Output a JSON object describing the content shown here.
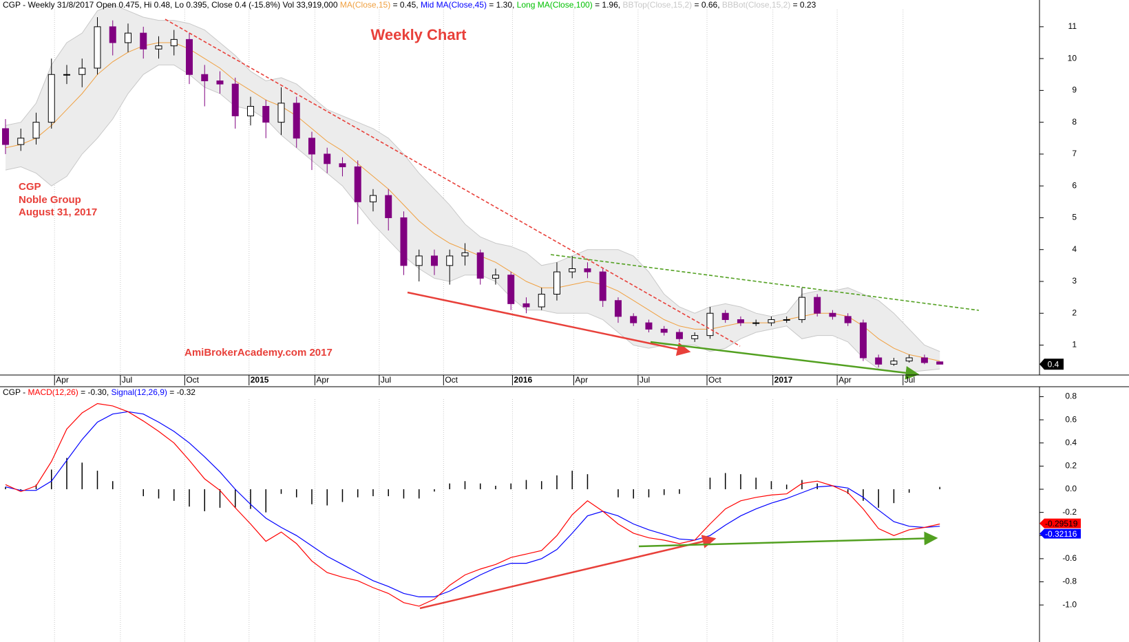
{
  "chart_data": [
    {
      "type": "candlestick",
      "header": {
        "prefix": "CGP - Weekly 31/8/2017 Open 0.475, Hi 0.48, Lo 0.395, Close 0.4 (-15.8%) Vol 33,919,000 ",
        "items": [
          {
            "name": "MA(Close,15)",
            "color": "#f0a040",
            "readout": " = 0.45, "
          },
          {
            "name": "Mid MA(Close,45)",
            "color": "#0000ff",
            "readout": " = 1.30, "
          },
          {
            "name": "Long MA(Close,100)",
            "color": "#00c000",
            "readout": " = 1.96, "
          },
          {
            "name": "BBTop(Close,15,2)",
            "color": "#c8c8c8",
            "readout": " = 0.66, "
          },
          {
            "name": "BBBot(Close,15,2)",
            "color": "#c8c8c8",
            "readout": " = 0.23"
          }
        ]
      },
      "title": "Weekly Chart",
      "note": [
        "CGP",
        "Noble Group",
        "August 31, 2017"
      ],
      "watermark": "AmiBrokerAcademy.com 2017",
      "x": [
        0,
        1,
        2,
        3,
        4,
        5,
        6,
        7,
        8,
        9,
        10,
        11,
        12,
        13,
        14,
        15,
        16,
        17,
        18,
        19,
        20,
        21,
        22,
        23,
        24,
        25,
        26,
        27,
        28,
        29,
        30,
        31,
        32,
        33,
        34,
        35,
        36,
        37,
        38,
        39,
        40,
        41,
        42,
        43,
        44,
        45,
        46,
        47,
        48,
        49,
        50,
        51,
        52,
        53,
        54,
        55,
        56,
        57,
        58,
        59,
        60,
        61
      ],
      "xlim": [
        -0.36,
        67.51
      ],
      "xticks": [
        {
          "value": 3.2,
          "label": "Apr"
        },
        {
          "value": 7.5,
          "label": "Jul"
        },
        {
          "value": 11.7,
          "label": "Oct"
        },
        {
          "value": 15.9,
          "label": "2015"
        },
        {
          "value": 20.2,
          "label": "Apr"
        },
        {
          "value": 24.4,
          "label": "Jul"
        },
        {
          "value": 28.6,
          "label": "Oct"
        },
        {
          "value": 33.1,
          "label": "2016"
        },
        {
          "value": 37.1,
          "label": "Apr"
        },
        {
          "value": 41.3,
          "label": "Jul"
        },
        {
          "value": 45.8,
          "label": "Oct"
        },
        {
          "value": 50.1,
          "label": "2017"
        },
        {
          "value": 54.3,
          "label": "Apr"
        },
        {
          "value": 58.6,
          "label": "Jul"
        }
      ],
      "ylim": [
        0.06,
        11.84
      ],
      "yticks": [
        1,
        2,
        3,
        4,
        5,
        6,
        7,
        8,
        9,
        10,
        11
      ],
      "grid": true,
      "open": [
        7.8,
        7.3,
        7.5,
        8.0,
        9.5,
        9.5,
        9.7,
        11.0,
        10.5,
        10.8,
        10.3,
        10.4,
        10.6,
        9.5,
        9.3,
        9.2,
        8.2,
        8.5,
        8.0,
        8.6,
        7.5,
        7.0,
        6.7,
        6.6,
        5.5,
        5.7,
        5.0,
        3.5,
        3.8,
        3.5,
        3.8,
        3.9,
        3.1,
        3.2,
        2.3,
        2.2,
        2.6,
        3.3,
        3.4,
        3.3,
        2.4,
        1.9,
        1.7,
        1.5,
        1.4,
        1.2,
        1.3,
        2.0,
        1.8,
        1.7,
        1.7,
        1.8,
        1.8,
        2.5,
        2.0,
        1.9,
        1.7,
        0.6,
        0.4,
        0.5,
        0.6,
        0.475
      ],
      "high": [
        8.1,
        7.8,
        8.3,
        10.0,
        9.8,
        10.0,
        11.3,
        11.2,
        11.1,
        11.0,
        10.7,
        10.9,
        10.8,
        9.8,
        9.6,
        9.4,
        8.8,
        8.7,
        9.1,
        8.8,
        7.7,
        7.2,
        6.9,
        6.8,
        5.9,
        5.9,
        5.2,
        4.0,
        4.0,
        4.0,
        4.2,
        4.0,
        3.4,
        3.3,
        2.5,
        2.8,
        3.6,
        3.8,
        3.6,
        3.4,
        2.5,
        2.0,
        1.8,
        1.6,
        1.5,
        1.4,
        2.2,
        2.1,
        1.9,
        1.8,
        1.9,
        1.9,
        2.8,
        2.6,
        2.1,
        2.0,
        1.8,
        0.7,
        0.6,
        0.7,
        0.7,
        0.48
      ],
      "low": [
        7.0,
        7.1,
        7.3,
        7.8,
        9.2,
        9.1,
        9.5,
        10.1,
        10.2,
        10.0,
        10.0,
        10.1,
        9.2,
        8.5,
        8.9,
        7.8,
        7.9,
        7.5,
        7.6,
        7.2,
        6.5,
        6.4,
        6.3,
        4.8,
        5.2,
        4.6,
        3.2,
        3.0,
        3.2,
        2.9,
        3.5,
        2.9,
        2.9,
        2.1,
        2.0,
        2.1,
        2.4,
        3.1,
        3.1,
        2.2,
        1.7,
        1.6,
        1.4,
        1.3,
        1.1,
        1.1,
        1.2,
        1.7,
        1.6,
        1.6,
        1.6,
        1.7,
        1.7,
        1.9,
        1.8,
        1.6,
        0.5,
        0.3,
        0.35,
        0.45,
        0.4,
        0.395
      ],
      "close": [
        7.3,
        7.5,
        8.0,
        9.5,
        9.5,
        9.7,
        11.0,
        10.5,
        10.8,
        10.3,
        10.4,
        10.6,
        9.5,
        9.3,
        9.2,
        8.2,
        8.5,
        8.0,
        8.6,
        7.5,
        7.0,
        6.7,
        6.6,
        5.5,
        5.7,
        5.0,
        3.5,
        3.8,
        3.5,
        3.8,
        3.9,
        3.1,
        3.2,
        2.3,
        2.2,
        2.6,
        3.3,
        3.4,
        3.3,
        2.4,
        1.9,
        1.7,
        1.5,
        1.4,
        1.2,
        1.3,
        2.0,
        1.8,
        1.7,
        1.7,
        1.8,
        1.8,
        2.5,
        2.0,
        1.9,
        1.7,
        0.6,
        0.4,
        0.5,
        0.6,
        0.45,
        0.4
      ],
      "up_color": "#ffffff",
      "down_color": "#800080",
      "band_color": "#ececec",
      "lines": {
        "ma15": {
          "color": "#f0a040",
          "values": [
            7.2,
            7.3,
            7.5,
            7.9,
            8.4,
            8.9,
            9.5,
            9.9,
            10.2,
            10.4,
            10.5,
            10.5,
            10.3,
            10.0,
            9.7,
            9.3,
            9.0,
            8.7,
            8.5,
            8.2,
            7.8,
            7.4,
            7.1,
            6.7,
            6.3,
            5.9,
            5.4,
            4.9,
            4.5,
            4.2,
            4.0,
            3.8,
            3.6,
            3.3,
            3.0,
            2.8,
            2.8,
            2.9,
            3.0,
            2.9,
            2.7,
            2.4,
            2.1,
            1.8,
            1.6,
            1.5,
            1.5,
            1.6,
            1.7,
            1.7,
            1.7,
            1.8,
            1.9,
            2.0,
            2.0,
            1.9,
            1.6,
            1.2,
            0.9,
            0.7,
            0.6,
            0.5
          ]
        },
        "bbtop": {
          "color": "#c8c8c8",
          "values": [
            7.9,
            8.0,
            8.6,
            9.8,
            10.5,
            10.8,
            11.5,
            11.7,
            11.5,
            11.3,
            11.2,
            11.2,
            11.1,
            10.9,
            10.5,
            10.1,
            9.6,
            9.3,
            9.4,
            9.2,
            8.8,
            8.4,
            8.2,
            8.0,
            7.8,
            7.5,
            7.0,
            6.4,
            5.9,
            5.4,
            4.8,
            4.4,
            4.2,
            4.1,
            3.9,
            3.5,
            3.6,
            3.8,
            4.0,
            4.0,
            4.0,
            3.8,
            3.3,
            2.6,
            2.2,
            2.0,
            2.2,
            2.3,
            2.2,
            2.0,
            1.9,
            2.0,
            2.6,
            2.7,
            2.7,
            2.8,
            2.6,
            2.4,
            2.0,
            1.5,
            1.0,
            0.8
          ]
        },
        "bbbot": {
          "color": "#c8c8c8",
          "values": [
            6.5,
            6.6,
            6.4,
            6.0,
            6.3,
            7.0,
            7.5,
            8.1,
            8.9,
            9.5,
            9.8,
            9.8,
            9.5,
            9.1,
            8.9,
            8.5,
            8.4,
            8.1,
            7.6,
            7.2,
            6.8,
            6.4,
            6.0,
            5.4,
            4.8,
            4.3,
            3.8,
            3.4,
            3.1,
            3.0,
            3.2,
            3.2,
            3.0,
            2.5,
            2.1,
            2.1,
            2.0,
            2.0,
            2.0,
            1.8,
            1.4,
            1.0,
            0.9,
            1.0,
            1.0,
            1.0,
            0.8,
            0.9,
            1.2,
            1.4,
            1.5,
            1.6,
            1.2,
            1.3,
            1.3,
            1.1,
            0.6,
            0.25,
            0.15,
            0.15,
            0.2,
            0.25
          ]
        }
      },
      "last_value": 0.4
    },
    {
      "type": "macd",
      "header": {
        "prefix": "CGP - ",
        "items": [
          {
            "name": "MACD(12,26)",
            "color": "#ff0000",
            "readout": " = -0.30, "
          },
          {
            "name": "Signal(12,26,9)",
            "color": "#0000ff",
            "readout": " = -0.32"
          }
        ]
      },
      "ylim": [
        -1.32,
        0.88
      ],
      "yticks": [
        0.8,
        0.6,
        0.4,
        0.2,
        {
          "value": 0,
          "label": "0.0"
        },
        -0.2,
        -0.4,
        -0.6,
        -0.8,
        {
          "value": -1,
          "label": "-1.0"
        }
      ],
      "macd": {
        "color": "#ff0000",
        "end_value": -0.29519,
        "values": [
          0.04,
          -0.02,
          0.03,
          0.24,
          0.52,
          0.66,
          0.74,
          0.72,
          0.67,
          0.59,
          0.5,
          0.4,
          0.25,
          0.09,
          -0.01,
          -0.16,
          -0.3,
          -0.45,
          -0.37,
          -0.47,
          -0.62,
          -0.72,
          -0.76,
          -0.79,
          -0.85,
          -0.9,
          -0.98,
          -1.01,
          -0.95,
          -0.83,
          -0.74,
          -0.69,
          -0.65,
          -0.59,
          -0.56,
          -0.53,
          -0.4,
          -0.22,
          -0.1,
          -0.19,
          -0.3,
          -0.38,
          -0.42,
          -0.44,
          -0.47,
          -0.44,
          -0.3,
          -0.17,
          -0.1,
          -0.07,
          -0.05,
          -0.04,
          0.05,
          0.07,
          0.03,
          -0.03,
          -0.17,
          -0.34,
          -0.4,
          -0.35,
          -0.33,
          -0.3
        ]
      },
      "signal": {
        "color": "#0000ff",
        "end_value": -0.32116,
        "values": [
          0.02,
          -0.01,
          -0.01,
          0.07,
          0.25,
          0.43,
          0.58,
          0.65,
          0.67,
          0.65,
          0.58,
          0.5,
          0.4,
          0.28,
          0.15,
          0.0,
          -0.13,
          -0.25,
          -0.33,
          -0.4,
          -0.49,
          -0.58,
          -0.65,
          -0.72,
          -0.79,
          -0.84,
          -0.9,
          -0.93,
          -0.93,
          -0.88,
          -0.81,
          -0.74,
          -0.68,
          -0.64,
          -0.64,
          -0.6,
          -0.52,
          -0.38,
          -0.23,
          -0.19,
          -0.23,
          -0.3,
          -0.35,
          -0.39,
          -0.43,
          -0.44,
          -0.4,
          -0.31,
          -0.23,
          -0.17,
          -0.12,
          -0.08,
          -0.03,
          0.02,
          0.03,
          0.01,
          -0.07,
          -0.18,
          -0.28,
          -0.32,
          -0.33,
          -0.32
        ]
      },
      "histogram": {
        "color": "#000000",
        "values": [
          0.02,
          -0.01,
          0.04,
          0.17,
          0.27,
          0.23,
          0.16,
          0.07,
          0.0,
          -0.06,
          -0.08,
          -0.1,
          -0.15,
          -0.19,
          -0.16,
          -0.16,
          -0.17,
          -0.2,
          -0.04,
          -0.07,
          -0.13,
          -0.14,
          -0.11,
          -0.07,
          -0.06,
          -0.06,
          -0.08,
          -0.08,
          -0.02,
          0.05,
          0.07,
          0.05,
          0.03,
          0.05,
          0.08,
          0.07,
          0.12,
          0.16,
          0.13,
          0.0,
          -0.07,
          -0.08,
          -0.07,
          -0.05,
          -0.04,
          0.0,
          0.1,
          0.14,
          0.13,
          0.1,
          0.07,
          0.04,
          0.08,
          0.05,
          0.0,
          -0.04,
          -0.1,
          -0.16,
          -0.12,
          -0.03,
          0.0,
          0.02
        ]
      }
    }
  ]
}
